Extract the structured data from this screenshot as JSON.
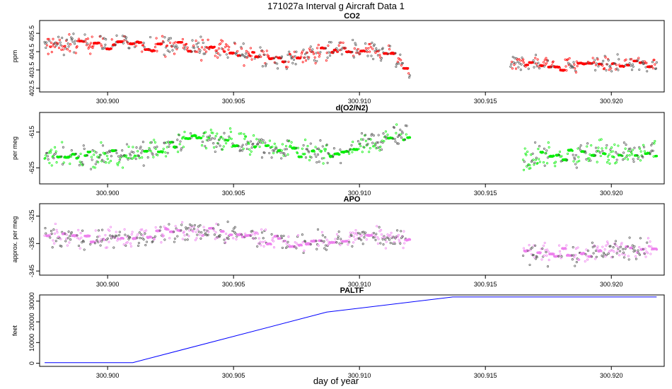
{
  "figure": {
    "title": "171027a   Interval g Aircraft Data 1",
    "xlabel": "day of year"
  },
  "colors": {
    "co2": "#ff0000",
    "o2n2": "#00ee00",
    "apo": "#ee82ee",
    "paltf": "#0000ff",
    "frame": "#000000"
  },
  "chart_data": [
    {
      "type": "scatter",
      "title": "CO2",
      "ylabel": "ppm",
      "xlim": [
        300.8973,
        300.9221
      ],
      "ylim": [
        402.3,
        406.2
      ],
      "x_ticks": [
        300.9,
        300.905,
        300.91,
        300.915,
        300.92
      ],
      "x_tick_labels": [
        "300.900",
        "300.905",
        "300.910",
        "300.915",
        "300.920"
      ],
      "y_ticks": [
        402.5,
        403.5,
        404.5,
        405.5
      ],
      "y_tick_labels": [
        "402.5",
        "403.5",
        "404.5",
        "405.5"
      ],
      "segments": [
        {
          "x_start": 300.8975,
          "x_end": 300.912,
          "trend": [
            [
              300.8975,
              404.8
            ],
            [
              300.899,
              405.0
            ],
            [
              300.9,
              404.9
            ],
            [
              300.9015,
              404.9
            ],
            [
              300.903,
              404.8
            ],
            [
              300.9045,
              404.6
            ],
            [
              300.9055,
              404.4
            ],
            [
              300.907,
              404.0
            ],
            [
              300.908,
              404.4
            ],
            [
              300.9095,
              404.6
            ],
            [
              300.9105,
              404.5
            ],
            [
              300.9112,
              404.4
            ],
            [
              300.9118,
              403.6
            ],
            [
              300.912,
              403.3
            ]
          ],
          "spread": 0.45
        },
        {
          "x_start": 300.916,
          "x_end": 300.9218,
          "trend": [
            [
              300.916,
              403.8
            ],
            [
              300.917,
              403.9
            ],
            [
              300.918,
              403.7
            ],
            [
              300.919,
              403.9
            ],
            [
              300.92,
              403.8
            ],
            [
              300.921,
              403.9
            ],
            [
              300.9218,
              403.8
            ]
          ],
          "spread": 0.35
        }
      ]
    },
    {
      "type": "scatter",
      "title": "d(O2/N2)",
      "ylabel": "per meg",
      "xlim": [
        300.8973,
        300.9221
      ],
      "ylim": [
        -629.5,
        -609.5
      ],
      "x_ticks": [
        300.9,
        300.905,
        300.91,
        300.915,
        300.92
      ],
      "x_tick_labels": [
        "300.900",
        "300.905",
        "300.910",
        "300.915",
        "300.920"
      ],
      "y_ticks": [
        -625,
        -615
      ],
      "y_tick_labels": [
        "-625",
        "-615"
      ],
      "segments": [
        {
          "x_start": 300.8975,
          "x_end": 300.912,
          "trend": [
            [
              300.8975,
              -621.0
            ],
            [
              300.899,
              -622.0
            ],
            [
              300.9,
              -621.5
            ],
            [
              300.901,
              -621.0
            ],
            [
              300.902,
              -620.0
            ],
            [
              300.903,
              -617.0
            ],
            [
              300.9045,
              -617.0
            ],
            [
              300.9055,
              -618.5
            ],
            [
              300.9065,
              -619.0
            ],
            [
              300.908,
              -621.0
            ],
            [
              300.909,
              -621.0
            ],
            [
              300.91,
              -618.5
            ],
            [
              300.911,
              -617.0
            ],
            [
              300.912,
              -615.5
            ]
          ],
          "spread": 2.6
        },
        {
          "x_start": 300.9165,
          "x_end": 300.9218,
          "trend": [
            [
              300.9165,
              -622.0
            ],
            [
              300.918,
              -621.5
            ],
            [
              300.9195,
              -621.0
            ],
            [
              300.921,
              -621.5
            ],
            [
              300.9218,
              -621.0
            ]
          ],
          "spread": 3.0
        }
      ]
    },
    {
      "type": "scatter",
      "title": "APO",
      "ylabel": "approx. per meg",
      "xlim": [
        300.8973,
        300.9221
      ],
      "ylim": [
        -346.5,
        -320.5
      ],
      "x_ticks": [
        300.9,
        300.905,
        300.91,
        300.915,
        300.92
      ],
      "x_tick_labels": [
        "300.900",
        "300.905",
        "300.910",
        "300.915",
        "300.920"
      ],
      "y_ticks": [
        -345,
        -335,
        -325
      ],
      "y_tick_labels": [
        "-345",
        "-335",
        "-325"
      ],
      "segments": [
        {
          "x_start": 300.8975,
          "x_end": 300.912,
          "trend": [
            [
              300.8975,
              -332.5
            ],
            [
              300.8995,
              -333.0
            ],
            [
              300.901,
              -333.5
            ],
            [
              300.9025,
              -330.5
            ],
            [
              300.904,
              -330.5
            ],
            [
              300.9055,
              -332.5
            ],
            [
              300.9075,
              -335.0
            ],
            [
              300.909,
              -334.0
            ],
            [
              300.9105,
              -331.5
            ],
            [
              300.912,
              -333.5
            ]
          ],
          "spread": 3.2
        },
        {
          "x_start": 300.9165,
          "x_end": 300.9218,
          "trend": [
            [
              300.9165,
              -338.0
            ],
            [
              300.918,
              -339.0
            ],
            [
              300.9195,
              -337.5
            ],
            [
              300.921,
              -337.5
            ],
            [
              300.9218,
              -336.5
            ]
          ],
          "spread": 3.5
        }
      ]
    },
    {
      "type": "line",
      "title": "PALTF",
      "ylabel": "feet",
      "xlim": [
        300.8973,
        300.9221
      ],
      "ylim": [
        -1500,
        33000
      ],
      "x_ticks": [
        300.9,
        300.905,
        300.91,
        300.915,
        300.92
      ],
      "x_tick_labels": [
        "300.900",
        "300.905",
        "300.910",
        "300.915",
        "300.920"
      ],
      "y_ticks": [
        0,
        10000,
        20000,
        30000
      ],
      "y_tick_labels": [
        "0",
        "10000",
        "20000",
        "30000"
      ],
      "x": [
        300.8975,
        300.901,
        300.9087,
        300.9137,
        300.9218
      ],
      "values": [
        300,
        300,
        24700,
        32000,
        32000
      ]
    }
  ]
}
